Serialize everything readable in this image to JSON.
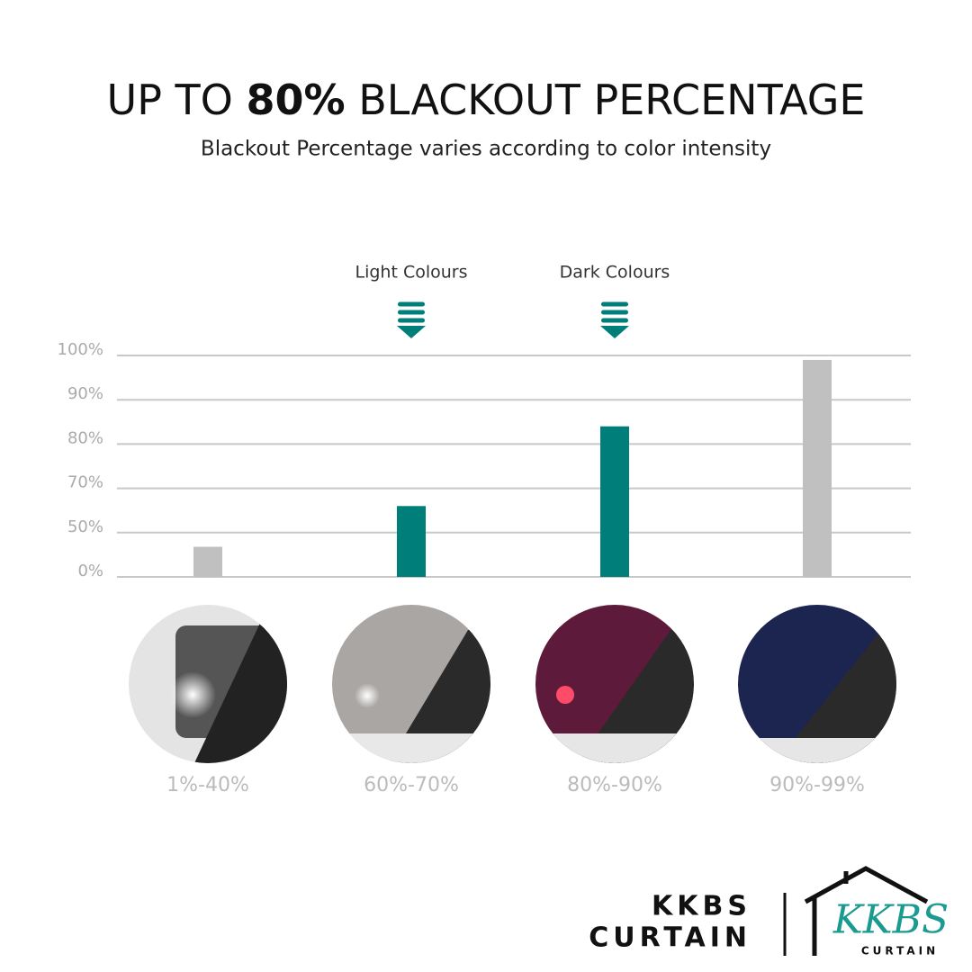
{
  "chart_data": {
    "type": "bar",
    "title": {
      "before": "UP TO",
      "bold": "80%",
      "after": "BLACKOUT PERCENTAGE"
    },
    "subtitle": "Blackout Percentage varies according to color intensity",
    "categories": [
      "1%-40%",
      "60%-70%",
      "80%-90%",
      "90%-99%"
    ],
    "values": [
      34,
      62,
      84,
      99
    ],
    "colors": [
      "#c0c0c0",
      "#007f7a",
      "#007f7a",
      "#c0c0c0"
    ],
    "annotations": [
      {
        "category": 1,
        "text": "Light Colours"
      },
      {
        "category": 2,
        "text": "Dark Colours"
      }
    ],
    "ylim": [
      0,
      100
    ],
    "yticks": [
      {
        "value": 0,
        "label": "0%"
      },
      {
        "value": 50,
        "label": "50%"
      },
      {
        "value": 70,
        "label": "70%"
      },
      {
        "value": 80,
        "label": "80%"
      },
      {
        "value": 90,
        "label": "90%"
      },
      {
        "value": 100,
        "label": "100%"
      }
    ],
    "scale": "piecewise",
    "grid": true
  },
  "brand": {
    "line1": "KKBS",
    "line2": "CURTAIN",
    "logo_name": "KKBS",
    "logo_sub": "CURTAIN"
  }
}
